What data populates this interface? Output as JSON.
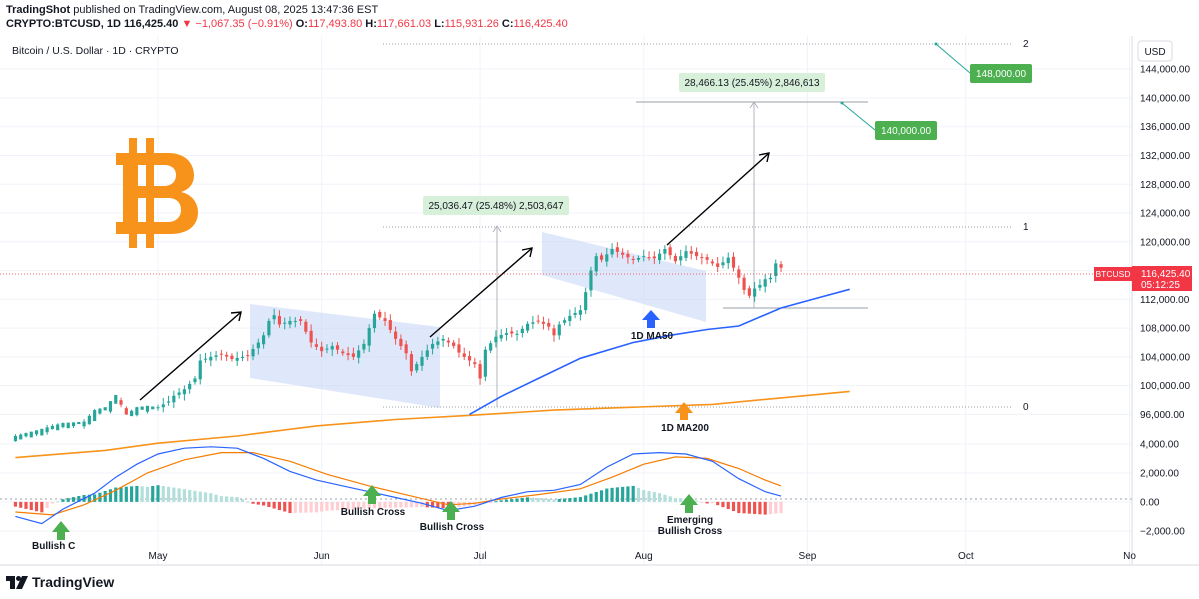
{
  "header": {
    "publisher": "TradingShot",
    "published_on": "published on TradingView.com, August 08, 2025 13:47:36 EST",
    "symbol": "CRYPTO:BTCUSD, 1D",
    "last": "116,425.40",
    "change": "▼ −1,067.35 (−0.91%)",
    "o_label": "O:",
    "o": "117,493.80",
    "h_label": "H:",
    "h": "117,661.03",
    "l_label": "L:",
    "l": "115,931.26",
    "c_label": "C:",
    "c": "116,425.40"
  },
  "chart_title": "Bitcoin / U.S. Dollar · 1D · CRYPTO",
  "currency": "USD",
  "footer_brand": "TradingView",
  "icons": {
    "bitcoin": "bitcoin-logo-icon",
    "tradingview": "tradingview-logo-icon"
  },
  "colors": {
    "up": "#26a69a",
    "down": "#ef5350",
    "ma50": "#2962ff",
    "ma200": "#f7931a",
    "bitcoin": "#f7931a",
    "label_green": "#4caf50",
    "price_tag": "#f23645",
    "channel": "#c5d3f5"
  },
  "price_tag": {
    "symbol": "BTCUSD",
    "price": "116,425.40",
    "countdown": "05:12:25"
  },
  "fib_labels": {
    "two": "2",
    "one": "1",
    "zero": "0"
  },
  "measure_1": "25,036.47 (25.48%) 2,503,647",
  "measure_2": "28,466.13 (25.45%) 2,846,613",
  "target_1": "140,000.00",
  "target_2": "148,000.00",
  "annotations": {
    "ma50": "1D MA50",
    "ma200": "1D MA200",
    "bullish_cross_1": "Bullish Cross",
    "bullish_cross_2": "Bullish Cross",
    "emerging_1": "Emerging",
    "emerging_2": "Bullish Cross",
    "cut_left": "Bullish C"
  },
  "chart_data": {
    "type": "candlestick",
    "symbol": "BTCUSD",
    "interval": "1D",
    "x_ticks": [
      "May",
      "Jun",
      "Jul",
      "Aug",
      "Sep",
      "Oct",
      "No"
    ],
    "y_ticks_price": [
      "144,000.00",
      "140,000.00",
      "136,000.00",
      "132,000.00",
      "128,000.00",
      "124,000.00",
      "120,000.00",
      "116,000.00",
      "112,000.00",
      "108,000.00",
      "104,000.00",
      "100,000.00",
      "96,000.00"
    ],
    "y_ticks_macd": [
      "4,000.00",
      "2,000.00",
      "0.00",
      "−2,000.00"
    ],
    "ylim_price": [
      93000,
      147500
    ],
    "ylim_macd": [
      -2700,
      4200
    ],
    "price_points": [
      {
        "d": -27,
        "v": 93000
      },
      {
        "d": -22,
        "v": 94000
      },
      {
        "d": -18,
        "v": 94800
      },
      {
        "d": -14,
        "v": 95000
      },
      {
        "d": -12,
        "v": 96600
      },
      {
        "d": -10,
        "v": 97000
      },
      {
        "d": -8,
        "v": 98700
      },
      {
        "d": -6,
        "v": 96000
      },
      {
        "d": -4,
        "v": 97000
      },
      {
        "d": -2,
        "v": 97200
      },
      {
        "d": 0,
        "v": 97000
      },
      {
        "d": 2,
        "v": 97800
      },
      {
        "d": 3,
        "v": 98600
      },
      {
        "d": 5,
        "v": 99500
      },
      {
        "d": 7,
        "v": 101000
      },
      {
        "d": 8,
        "v": 103500
      },
      {
        "d": 10,
        "v": 104000
      },
      {
        "d": 12,
        "v": 104400
      },
      {
        "d": 14,
        "v": 103700
      },
      {
        "d": 16,
        "v": 104000
      },
      {
        "d": 17,
        "v": 104200
      },
      {
        "d": 19,
        "v": 106000
      },
      {
        "d": 20,
        "v": 107000
      },
      {
        "d": 21,
        "v": 109000
      },
      {
        "d": 22,
        "v": 109800
      },
      {
        "d": 23,
        "v": 108500
      },
      {
        "d": 25,
        "v": 109000
      },
      {
        "d": 27,
        "v": 109000
      },
      {
        "d": 29,
        "v": 106000
      },
      {
        "d": 31,
        "v": 104800
      },
      {
        "d": 33,
        "v": 105500
      },
      {
        "d": 35,
        "v": 104500
      },
      {
        "d": 37,
        "v": 104000
      },
      {
        "d": 39,
        "v": 105800
      },
      {
        "d": 40,
        "v": 108000
      },
      {
        "d": 41,
        "v": 110000
      },
      {
        "d": 43,
        "v": 109000
      },
      {
        "d": 45,
        "v": 106500
      },
      {
        "d": 47,
        "v": 104500
      },
      {
        "d": 48,
        "v": 102000
      },
      {
        "d": 50,
        "v": 104000
      },
      {
        "d": 52,
        "v": 105800
      },
      {
        "d": 54,
        "v": 106500
      },
      {
        "d": 56,
        "v": 105500
      },
      {
        "d": 57,
        "v": 104600
      },
      {
        "d": 58,
        "v": 104000
      },
      {
        "d": 60,
        "v": 103000
      },
      {
        "d": 61,
        "v": 101000
      },
      {
        "d": 62,
        "v": 105000
      },
      {
        "d": 64,
        "v": 106800
      },
      {
        "d": 66,
        "v": 107300
      },
      {
        "d": 68,
        "v": 107200
      },
      {
        "d": 70,
        "v": 108600
      },
      {
        "d": 72,
        "v": 109000
      },
      {
        "d": 74,
        "v": 108200
      },
      {
        "d": 75,
        "v": 107000
      },
      {
        "d": 76,
        "v": 108500
      },
      {
        "d": 78,
        "v": 109700
      },
      {
        "d": 80,
        "v": 110500
      },
      {
        "d": 81,
        "v": 113000
      },
      {
        "d": 82,
        "v": 116000
      },
      {
        "d": 83,
        "v": 118000
      },
      {
        "d": 84,
        "v": 117500
      },
      {
        "d": 86,
        "v": 119000
      },
      {
        "d": 88,
        "v": 118200
      },
      {
        "d": 90,
        "v": 117500
      },
      {
        "d": 92,
        "v": 118000
      },
      {
        "d": 94,
        "v": 117700
      },
      {
        "d": 96,
        "v": 119000
      },
      {
        "d": 98,
        "v": 117300
      },
      {
        "d": 100,
        "v": 118700
      },
      {
        "d": 102,
        "v": 118000
      },
      {
        "d": 104,
        "v": 117500
      },
      {
        "d": 106,
        "v": 116500
      },
      {
        "d": 108,
        "v": 117800
      },
      {
        "d": 110,
        "v": 115000
      },
      {
        "d": 111,
        "v": 113300
      },
      {
        "d": 112,
        "v": 112500
      },
      {
        "d": 113,
        "v": 113500
      },
      {
        "d": 114,
        "v": 114000
      },
      {
        "d": 115,
        "v": 114800
      },
      {
        "d": 116,
        "v": 115000
      },
      {
        "d": 117,
        "v": 117000
      },
      {
        "d": 118,
        "v": 116400
      }
    ],
    "ma50": [
      {
        "d": 59,
        "v": 96000
      },
      {
        "d": 65,
        "v": 98500
      },
      {
        "d": 72,
        "v": 101000
      },
      {
        "d": 80,
        "v": 103800
      },
      {
        "d": 90,
        "v": 106000
      },
      {
        "d": 97,
        "v": 107000
      },
      {
        "d": 104,
        "v": 107800
      },
      {
        "d": 110,
        "v": 108300
      },
      {
        "d": 118,
        "v": 110800
      },
      {
        "d": 125,
        "v": 112200
      },
      {
        "d": 131,
        "v": 113400
      }
    ],
    "ma200": [
      {
        "d": -27,
        "v": 90000
      },
      {
        "d": -10,
        "v": 91000
      },
      {
        "d": 0,
        "v": 92000
      },
      {
        "d": 15,
        "v": 93000
      },
      {
        "d": 30,
        "v": 94400
      },
      {
        "d": 45,
        "v": 95300
      },
      {
        "d": 60,
        "v": 95900
      },
      {
        "d": 75,
        "v": 96600
      },
      {
        "d": 90,
        "v": 97000
      },
      {
        "d": 105,
        "v": 97400
      },
      {
        "d": 118,
        "v": 98300
      },
      {
        "d": 131,
        "v": 99200
      }
    ],
    "macd_line": [
      {
        "d": -27,
        "v": -1000
      },
      {
        "d": -22,
        "v": -1500
      },
      {
        "d": -18,
        "v": -500
      },
      {
        "d": -12,
        "v": 600
      },
      {
        "d": -8,
        "v": 1700
      },
      {
        "d": -4,
        "v": 2600
      },
      {
        "d": 0,
        "v": 3300
      },
      {
        "d": 5,
        "v": 3700
      },
      {
        "d": 10,
        "v": 3800
      },
      {
        "d": 15,
        "v": 3700
      },
      {
        "d": 20,
        "v": 3000
      },
      {
        "d": 25,
        "v": 2100
      },
      {
        "d": 30,
        "v": 1500
      },
      {
        "d": 35,
        "v": 1100
      },
      {
        "d": 40,
        "v": 700
      },
      {
        "d": 45,
        "v": 300
      },
      {
        "d": 50,
        "v": -100
      },
      {
        "d": 55,
        "v": -600
      },
      {
        "d": 60,
        "v": -300
      },
      {
        "d": 65,
        "v": 300
      },
      {
        "d": 70,
        "v": 700
      },
      {
        "d": 75,
        "v": 800
      },
      {
        "d": 80,
        "v": 1200
      },
      {
        "d": 85,
        "v": 2400
      },
      {
        "d": 90,
        "v": 3300
      },
      {
        "d": 95,
        "v": 3400
      },
      {
        "d": 100,
        "v": 3300
      },
      {
        "d": 105,
        "v": 2800
      },
      {
        "d": 110,
        "v": 1600
      },
      {
        "d": 115,
        "v": 700
      },
      {
        "d": 118,
        "v": 400
      }
    ],
    "signal_line": [
      {
        "d": -27,
        "v": -700
      },
      {
        "d": -20,
        "v": -900
      },
      {
        "d": -14,
        "v": -200
      },
      {
        "d": -8,
        "v": 800
      },
      {
        "d": -2,
        "v": 2000
      },
      {
        "d": 5,
        "v": 2900
      },
      {
        "d": 12,
        "v": 3400
      },
      {
        "d": 18,
        "v": 3400
      },
      {
        "d": 25,
        "v": 2800
      },
      {
        "d": 32,
        "v": 1900
      },
      {
        "d": 40,
        "v": 1100
      },
      {
        "d": 48,
        "v": 400
      },
      {
        "d": 55,
        "v": -200
      },
      {
        "d": 60,
        "v": -100
      },
      {
        "d": 65,
        "v": 200
      },
      {
        "d": 72,
        "v": 500
      },
      {
        "d": 80,
        "v": 900
      },
      {
        "d": 86,
        "v": 1700
      },
      {
        "d": 92,
        "v": 2600
      },
      {
        "d": 98,
        "v": 3100
      },
      {
        "d": 104,
        "v": 3000
      },
      {
        "d": 110,
        "v": 2300
      },
      {
        "d": 115,
        "v": 1500
      },
      {
        "d": 118,
        "v": 1100
      }
    ],
    "fib_levels": {
      "0": 98000,
      "1": 123400,
      "2": 148000
    },
    "targets": [
      140000,
      148000
    ],
    "measure_1": {
      "from_price": 98000,
      "to_price": 123400
    },
    "measure_2": {
      "from_price": 112000,
      "to_price": 140000
    }
  }
}
